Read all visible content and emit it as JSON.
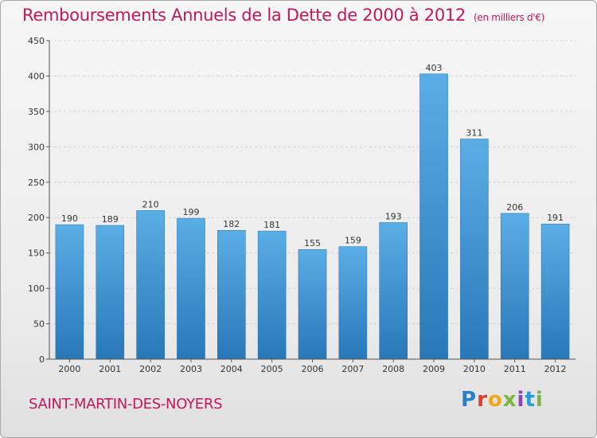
{
  "header": {
    "title": "Remboursements Annuels de la Dette de 2000 à 2012",
    "unit": "(en milliers d'€)"
  },
  "footer": {
    "commune": "SAINT-MARTIN-DES-NOYERS",
    "logo_letters": [
      "P",
      "r",
      "o",
      "x",
      "i",
      "t",
      "i"
    ]
  },
  "colors": {
    "bar_top": "#5aaee6",
    "bar_bottom": "#2878b8",
    "title": "#c2185b"
  },
  "chart_data": {
    "type": "bar",
    "title": "Remboursements Annuels de la Dette de 2000 à 2012",
    "xlabel": "",
    "ylabel": "",
    "categories": [
      "2000",
      "2001",
      "2002",
      "2003",
      "2004",
      "2005",
      "2006",
      "2007",
      "2008",
      "2009",
      "2010",
      "2011",
      "2012"
    ],
    "values": [
      190,
      189,
      210,
      199,
      182,
      181,
      155,
      159,
      193,
      403,
      311,
      206,
      191
    ],
    "ylim": [
      0,
      450
    ],
    "yticks": [
      0,
      50,
      100,
      150,
      200,
      250,
      300,
      350,
      400,
      450
    ],
    "grid": true,
    "legend": "none"
  }
}
